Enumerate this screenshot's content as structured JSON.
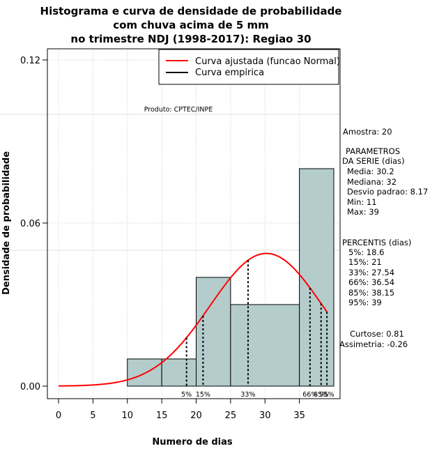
{
  "chart_data": {
    "type": "histogram",
    "title_lines": [
      "Histograma e curva de densidade de probabilidade",
      "com chuva acima de 5 mm",
      "no trimestre NDJ (1998-2017): Regiao 30"
    ],
    "xlabel": "Numero de dias",
    "ylabel": "Densidade de probabilidade",
    "xlim": [
      -1.5,
      40.5
    ],
    "ylim": [
      0,
      0.12
    ],
    "x_ticks": [
      0,
      5,
      10,
      15,
      20,
      25,
      30,
      35
    ],
    "y_ticks": [
      0.0,
      0.06,
      0.12
    ],
    "y_tick_labels": [
      "0.00",
      "0.06",
      "0.12"
    ],
    "grid_x": [
      0,
      5,
      10,
      15,
      20,
      25,
      30,
      35
    ],
    "grid_y_dotted": [
      0.06,
      0.12
    ],
    "grid_y_light": [
      0.1,
      0.05
    ],
    "bins": [
      {
        "from": 10,
        "to": 15,
        "density": 0.01
      },
      {
        "from": 15,
        "to": 20,
        "density": 0.01
      },
      {
        "from": 20,
        "to": 25,
        "density": 0.04
      },
      {
        "from": 25,
        "to": 35,
        "density": 0.03
      },
      {
        "from": 35,
        "to": 40,
        "density": 0.08
      }
    ],
    "bar_color": "#b4cccc",
    "normal_curve": {
      "name": "Curva ajustada (funcao Normal)",
      "mean": 30.2,
      "sd": 8.17,
      "from": 0,
      "to": 39,
      "color": "#ff0000"
    },
    "empirical_legend": {
      "name": "Curva empirica",
      "color": "#000000"
    },
    "percentiles": [
      {
        "label": "5%",
        "value": 18.6
      },
      {
        "label": "15%",
        "value": 21
      },
      {
        "label": "33%",
        "value": 27.54
      },
      {
        "label": "66%",
        "value": 36.54
      },
      {
        "label": "85%",
        "value": 38.15
      },
      {
        "label": "95%",
        "value": 39
      }
    ],
    "produto": "Produto: CPTEC/INPE",
    "legend_position": "top-right"
  },
  "stats": {
    "amostra": "Amostra: 20",
    "params_title_1": "PARAMETROS",
    "params_title_2": "DA SERIE (dias)",
    "media": "Media: 30.2",
    "mediana": "Mediana: 32",
    "desvio": "Desvio padrao: 8.17",
    "min": "Min: 11",
    "max": "Max: 39",
    "percentis_title": "PERCENTIS (dias)",
    "p5": "5%: 18.6",
    "p15": "15%: 21",
    "p33": "33%: 27.54",
    "p66": "66%: 36.54",
    "p85": "85%: 38.15",
    "p95": "95%: 39",
    "curtose": "Curtose: 0.81",
    "assimetria": "Assimetria: -0.26"
  }
}
